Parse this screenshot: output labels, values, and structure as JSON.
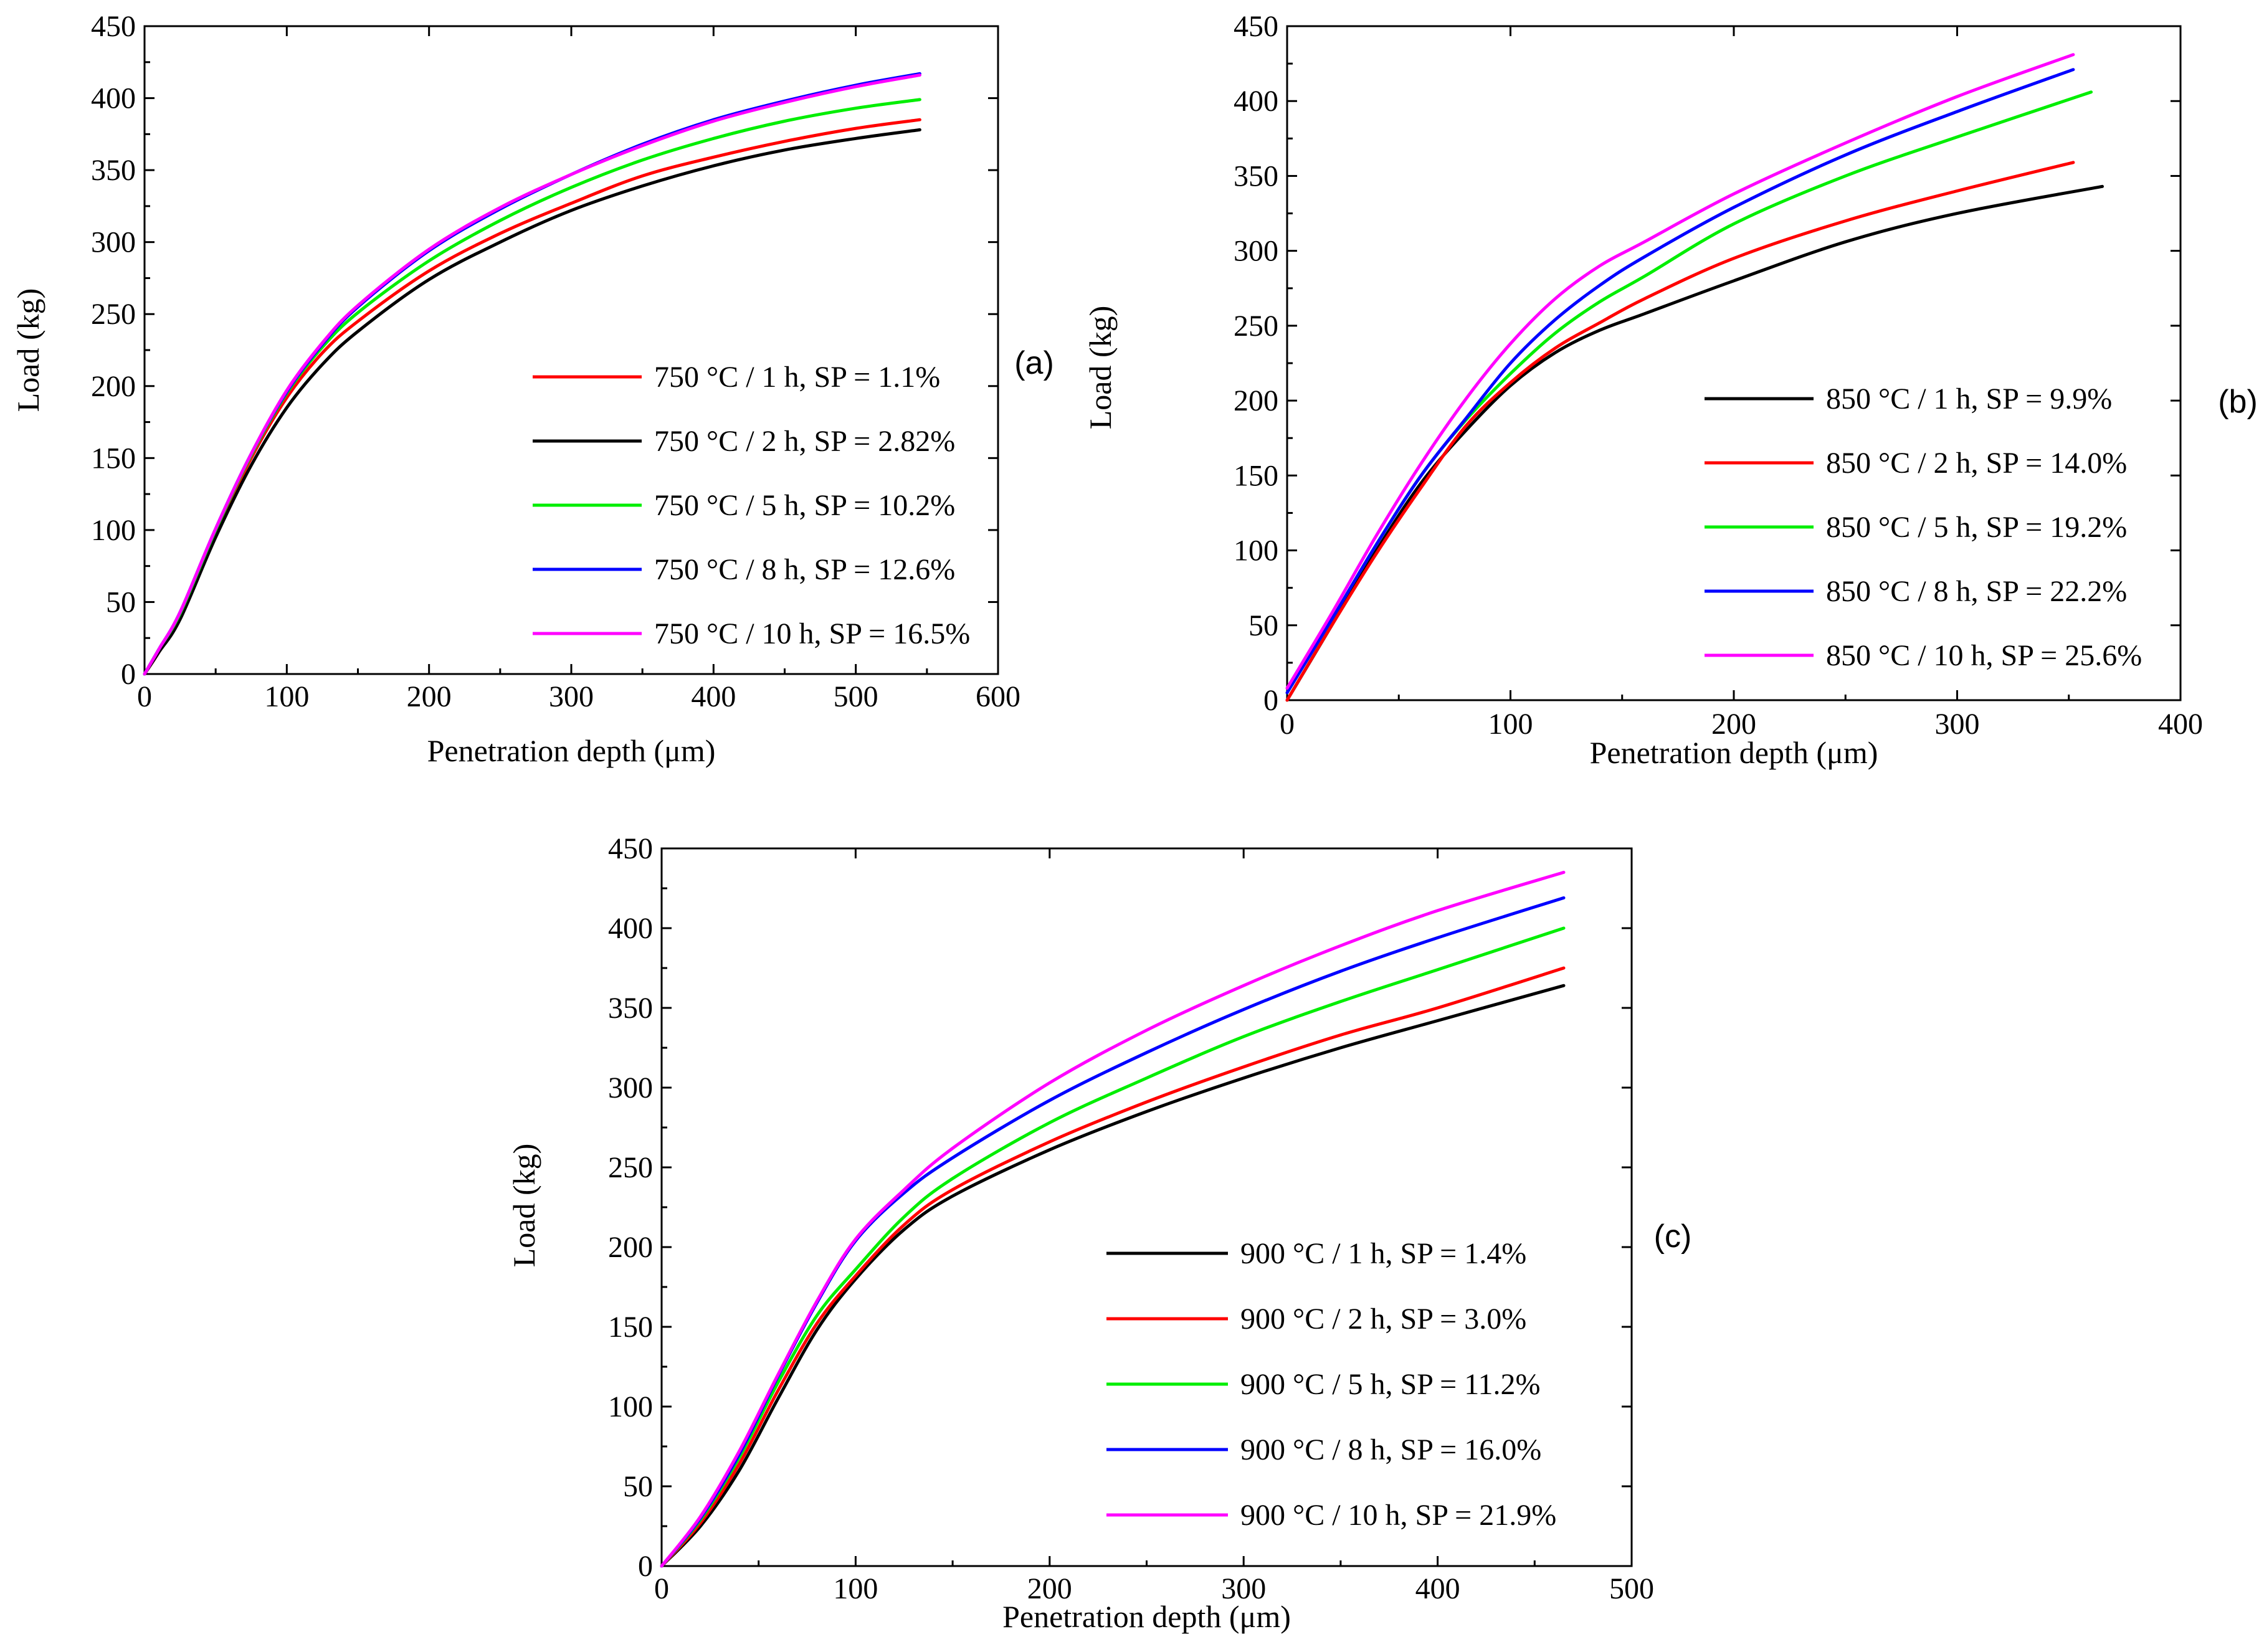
{
  "colors": {
    "black": "#000000",
    "red": "#ff0000",
    "green": "#00ee00",
    "blue": "#0000ff",
    "magenta": "#ff00ff"
  },
  "chart_data": [
    {
      "panel": "(a)",
      "type": "line",
      "xlabel": "Penetration depth (μm)",
      "ylabel": "Load (kg)",
      "xlim": [
        0,
        600
      ],
      "ylim": [
        0,
        450
      ],
      "xticks": [
        0,
        100,
        200,
        300,
        400,
        500,
        600
      ],
      "yticks": [
        0,
        50,
        100,
        150,
        200,
        250,
        300,
        350,
        400,
        450
      ],
      "legend_position": "right",
      "series": [
        {
          "name": "750 °C / 1 h, SP = 1.1%",
          "color": "red",
          "x": [
            0,
            10,
            25,
            50,
            75,
            100,
            125,
            150,
            200,
            250,
            300,
            350,
            400,
            450,
            500,
            545
          ],
          "y": [
            0,
            15,
            40,
            98,
            150,
            192,
            223,
            245,
            280,
            306,
            327,
            346,
            359,
            370,
            379,
            385
          ]
        },
        {
          "name": "750 °C / 2 h, SP = 2.82%",
          "color": "black",
          "x": [
            0,
            10,
            25,
            50,
            75,
            100,
            125,
            150,
            200,
            250,
            300,
            350,
            400,
            450,
            500,
            545
          ],
          "y": [
            0,
            15,
            38,
            95,
            145,
            185,
            215,
            238,
            274,
            300,
            322,
            339,
            353,
            364,
            372,
            378
          ]
        },
        {
          "name": "750 °C / 5 h, SP = 10.2%",
          "color": "green",
          "x": [
            0,
            10,
            25,
            50,
            75,
            100,
            125,
            150,
            200,
            250,
            300,
            350,
            400,
            450,
            500,
            545
          ],
          "y": [
            0,
            17,
            42,
            100,
            152,
            195,
            227,
            251,
            287,
            315,
            338,
            357,
            372,
            384,
            393,
            399
          ]
        },
        {
          "name": "750 °C / 8 h, SP = 12.6%",
          "color": "blue",
          "x": [
            0,
            10,
            25,
            50,
            75,
            100,
            125,
            150,
            200,
            250,
            300,
            350,
            400,
            450,
            500,
            545
          ],
          "y": [
            0,
            17,
            43,
            101,
            153,
            196,
            229,
            255,
            294,
            323,
            347,
            368,
            385,
            398,
            409,
            417
          ]
        },
        {
          "name": "750 °C / 10 h, SP = 16.5%",
          "color": "magenta",
          "x": [
            0,
            10,
            25,
            50,
            75,
            100,
            125,
            150,
            200,
            250,
            300,
            350,
            400,
            450,
            500,
            545
          ],
          "y": [
            0,
            17,
            43,
            101,
            153,
            197,
            230,
            256,
            295,
            324,
            347,
            367,
            384,
            397,
            408,
            416
          ]
        }
      ]
    },
    {
      "panel": "(b)",
      "type": "line",
      "xlabel": "Penetration depth (μm)",
      "ylabel": "Load (kg)",
      "xlim": [
        0,
        400
      ],
      "ylim": [
        0,
        450
      ],
      "xticks": [
        0,
        100,
        200,
        300,
        400
      ],
      "yticks": [
        0,
        50,
        100,
        150,
        200,
        250,
        300,
        350,
        400,
        450
      ],
      "legend_position": "right",
      "series": [
        {
          "name": "850 °C / 1 h, SP = 9.9%",
          "color": "black",
          "x": [
            0,
            20,
            40,
            60,
            80,
            100,
            120,
            140,
            160,
            200,
            250,
            300,
            365
          ],
          "y": [
            0,
            50,
            100,
            145,
            180,
            210,
            232,
            247,
            258,
            280,
            306,
            325,
            343
          ]
        },
        {
          "name": "850 °C / 2 h, SP = 14.0%",
          "color": "red",
          "x": [
            0,
            20,
            40,
            60,
            80,
            100,
            120,
            140,
            160,
            200,
            250,
            300,
            352
          ],
          "y": [
            0,
            50,
            98,
            142,
            183,
            212,
            235,
            252,
            268,
            295,
            320,
            340,
            359
          ]
        },
        {
          "name": "850 °C / 5 h, SP = 19.2%",
          "color": "green",
          "x": [
            0,
            20,
            40,
            60,
            80,
            100,
            120,
            140,
            160,
            200,
            250,
            300,
            360
          ],
          "y": [
            5,
            54,
            104,
            150,
            187,
            218,
            245,
            266,
            283,
            318,
            350,
            376,
            406
          ]
        },
        {
          "name": "850 °C / 8 h, SP = 22.2%",
          "color": "blue",
          "x": [
            0,
            20,
            40,
            60,
            80,
            100,
            120,
            140,
            160,
            200,
            250,
            300,
            352
          ],
          "y": [
            5,
            54,
            104,
            150,
            188,
            225,
            254,
            277,
            296,
            329,
            364,
            393,
            421
          ]
        },
        {
          "name": "850 °C / 10 h, SP = 25.6%",
          "color": "magenta",
          "x": [
            0,
            20,
            40,
            60,
            80,
            100,
            120,
            140,
            160,
            200,
            250,
            300,
            352
          ],
          "y": [
            8,
            58,
            110,
            158,
            201,
            238,
            268,
            290,
            306,
            338,
            372,
            403,
            431
          ]
        }
      ]
    },
    {
      "panel": "(c)",
      "type": "line",
      "xlabel": "Penetration depth (μm)",
      "ylabel": "Load (kg)",
      "xlim": [
        0,
        500
      ],
      "ylim": [
        0,
        450
      ],
      "xticks": [
        0,
        100,
        200,
        300,
        400,
        500
      ],
      "yticks": [
        0,
        50,
        100,
        150,
        200,
        250,
        300,
        350,
        400,
        450
      ],
      "legend_position": "bottom-right",
      "series": [
        {
          "name": "900 °C / 1 h, SP = 1.4%",
          "color": "black",
          "x": [
            0,
            20,
            40,
            60,
            80,
            100,
            125,
            150,
            200,
            250,
            300,
            350,
            400,
            465
          ],
          "y": [
            0,
            25,
            60,
            105,
            148,
            180,
            211,
            232,
            261,
            285,
            306,
            325,
            342,
            364
          ]
        },
        {
          "name": "900 °C / 2 h, SP = 3.0%",
          "color": "red",
          "x": [
            0,
            20,
            40,
            60,
            80,
            100,
            125,
            150,
            200,
            250,
            300,
            350,
            400,
            465
          ],
          "y": [
            0,
            27,
            64,
            110,
            152,
            182,
            214,
            236,
            266,
            291,
            313,
            333,
            350,
            375
          ]
        },
        {
          "name": "900 °C / 5 h, SP = 11.2%",
          "color": "green",
          "x": [
            0,
            20,
            40,
            60,
            80,
            100,
            125,
            150,
            200,
            250,
            300,
            350,
            400,
            465
          ],
          "y": [
            0,
            29,
            68,
            115,
            157,
            186,
            219,
            243,
            278,
            306,
            332,
            354,
            374,
            400
          ]
        },
        {
          "name": "900 °C / 8 h, SP = 16.0%",
          "color": "blue",
          "x": [
            0,
            20,
            40,
            60,
            80,
            100,
            125,
            150,
            200,
            250,
            300,
            350,
            400,
            465
          ],
          "y": [
            0,
            30,
            70,
            119,
            165,
            204,
            234,
            256,
            292,
            322,
            349,
            373,
            394,
            419
          ]
        },
        {
          "name": "900 °C / 10 h, SP = 21.9%",
          "color": "magenta",
          "x": [
            0,
            20,
            40,
            60,
            80,
            100,
            125,
            150,
            200,
            250,
            300,
            350,
            400,
            465
          ],
          "y": [
            0,
            31,
            72,
            120,
            166,
            205,
            236,
            262,
            303,
            336,
            364,
            389,
            411,
            435
          ]
        }
      ]
    }
  ]
}
